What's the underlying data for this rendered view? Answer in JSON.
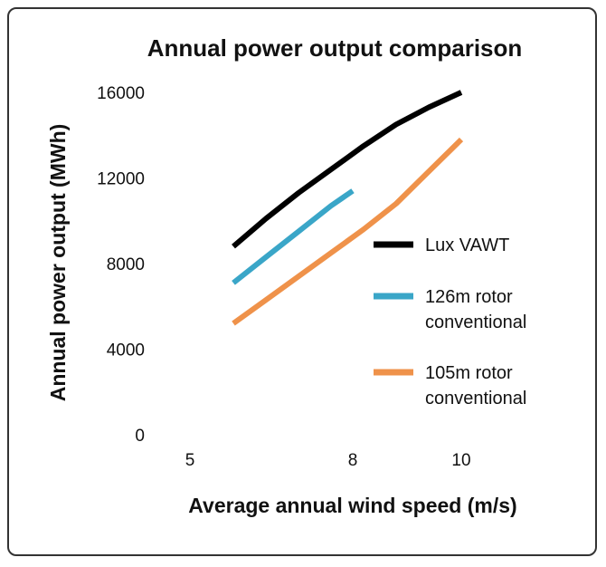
{
  "chart_data": {
    "type": "line",
    "title": "Annual power output comparison",
    "xlabel": "Average annual wind speed (m/s)",
    "ylabel": "Annual power output (MWh)",
    "xlim": [
      4,
      10.5
    ],
    "ylim": [
      0,
      16000
    ],
    "x_ticks": [
      5,
      8,
      10
    ],
    "y_ticks": [
      0,
      4000,
      8000,
      12000,
      16000
    ],
    "grid": false,
    "legend_position": "right",
    "series": [
      {
        "name": "Lux VAWT",
        "color": "#000000",
        "x": [
          5.8,
          6.4,
          7.0,
          7.6,
          8.2,
          8.8,
          9.4,
          10.0
        ],
        "y": [
          8800,
          10100,
          11300,
          12400,
          13500,
          14500,
          15300,
          16000
        ]
      },
      {
        "name": "126m rotor conventional",
        "color": "#3aa6c8",
        "x": [
          5.8,
          6.4,
          7.0,
          7.6,
          8.0
        ],
        "y": [
          7100,
          8300,
          9500,
          10700,
          11400
        ]
      },
      {
        "name": "105m rotor conventional",
        "color": "#ef924a",
        "x": [
          5.8,
          6.4,
          7.0,
          7.6,
          8.2,
          8.8,
          9.4,
          10.0
        ],
        "y": [
          5200,
          6300,
          7400,
          8500,
          9600,
          10800,
          12300,
          13800
        ]
      }
    ],
    "legend": [
      {
        "lines": [
          "Lux VAWT"
        ],
        "color": "#000000"
      },
      {
        "lines": [
          "126m rotor",
          "conventional"
        ],
        "color": "#3aa6c8"
      },
      {
        "lines": [
          "105m rotor",
          "conventional"
        ],
        "color": "#ef924a"
      }
    ]
  }
}
